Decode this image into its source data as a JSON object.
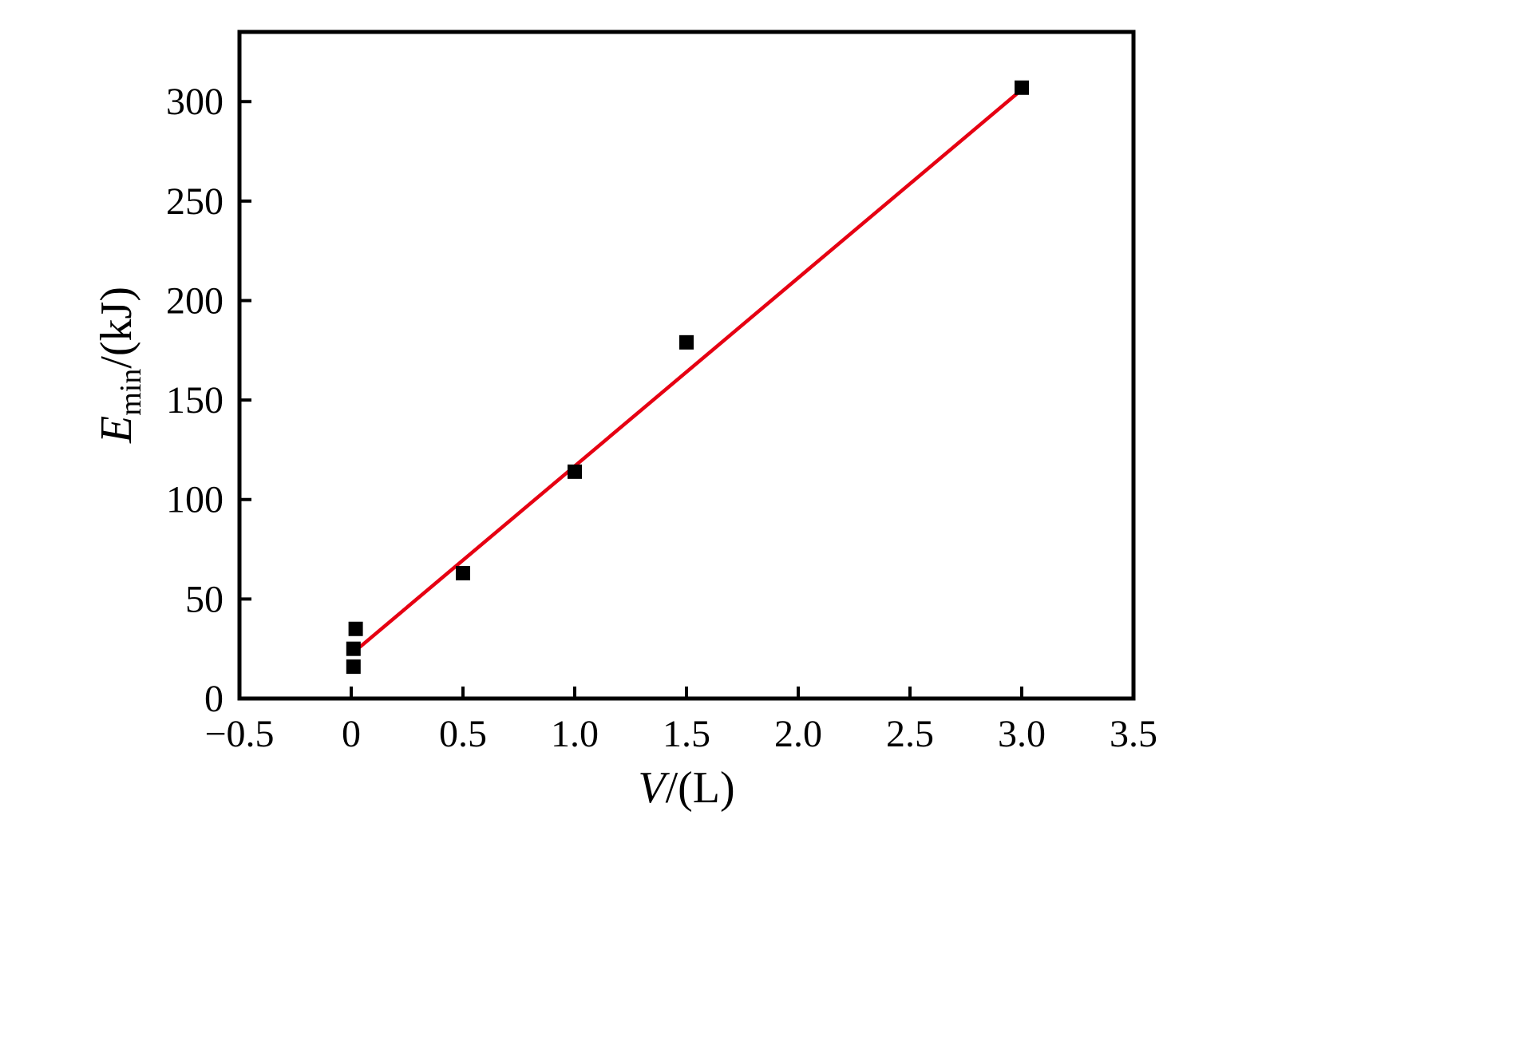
{
  "chart_data": {
    "type": "scatter",
    "title": "",
    "xlabel_var": "V",
    "xlabel_unit": "/(L)",
    "ylabel_var": "E",
    "ylabel_sub": "min",
    "ylabel_unit": "/(kJ)",
    "xlim": [
      -0.5,
      3.5
    ],
    "ylim": [
      0,
      335
    ],
    "grid": false,
    "legend": "none",
    "x_ticks": [
      {
        "v": -0.5,
        "label": "−0.5"
      },
      {
        "v": 0,
        "label": "0"
      },
      {
        "v": 0.5,
        "label": "0.5"
      },
      {
        "v": 1.0,
        "label": "1.0"
      },
      {
        "v": 1.5,
        "label": "1.5"
      },
      {
        "v": 2.0,
        "label": "2.0"
      },
      {
        "v": 2.5,
        "label": "2.5"
      },
      {
        "v": 3.0,
        "label": "3.0"
      },
      {
        "v": 3.5,
        "label": "3.5"
      }
    ],
    "y_ticks": [
      {
        "v": 0,
        "label": "0"
      },
      {
        "v": 50,
        "label": "50"
      },
      {
        "v": 100,
        "label": "100"
      },
      {
        "v": 150,
        "label": "150"
      },
      {
        "v": 200,
        "label": "200"
      },
      {
        "v": 250,
        "label": "250"
      },
      {
        "v": 300,
        "label": "300"
      }
    ],
    "points": [
      {
        "x": 0.01,
        "y": 16
      },
      {
        "x": 0.01,
        "y": 25
      },
      {
        "x": 0.02,
        "y": 35
      },
      {
        "x": 0.5,
        "y": 63
      },
      {
        "x": 1.0,
        "y": 114
      },
      {
        "x": 1.5,
        "y": 179
      },
      {
        "x": 3.0,
        "y": 307
      }
    ],
    "fit_line": {
      "x1": 0.04,
      "y1": 26,
      "x2": 3.0,
      "y2": 306
    },
    "marker_color": "#000000",
    "line_color": "#e60012",
    "frame_color": "#000000"
  }
}
